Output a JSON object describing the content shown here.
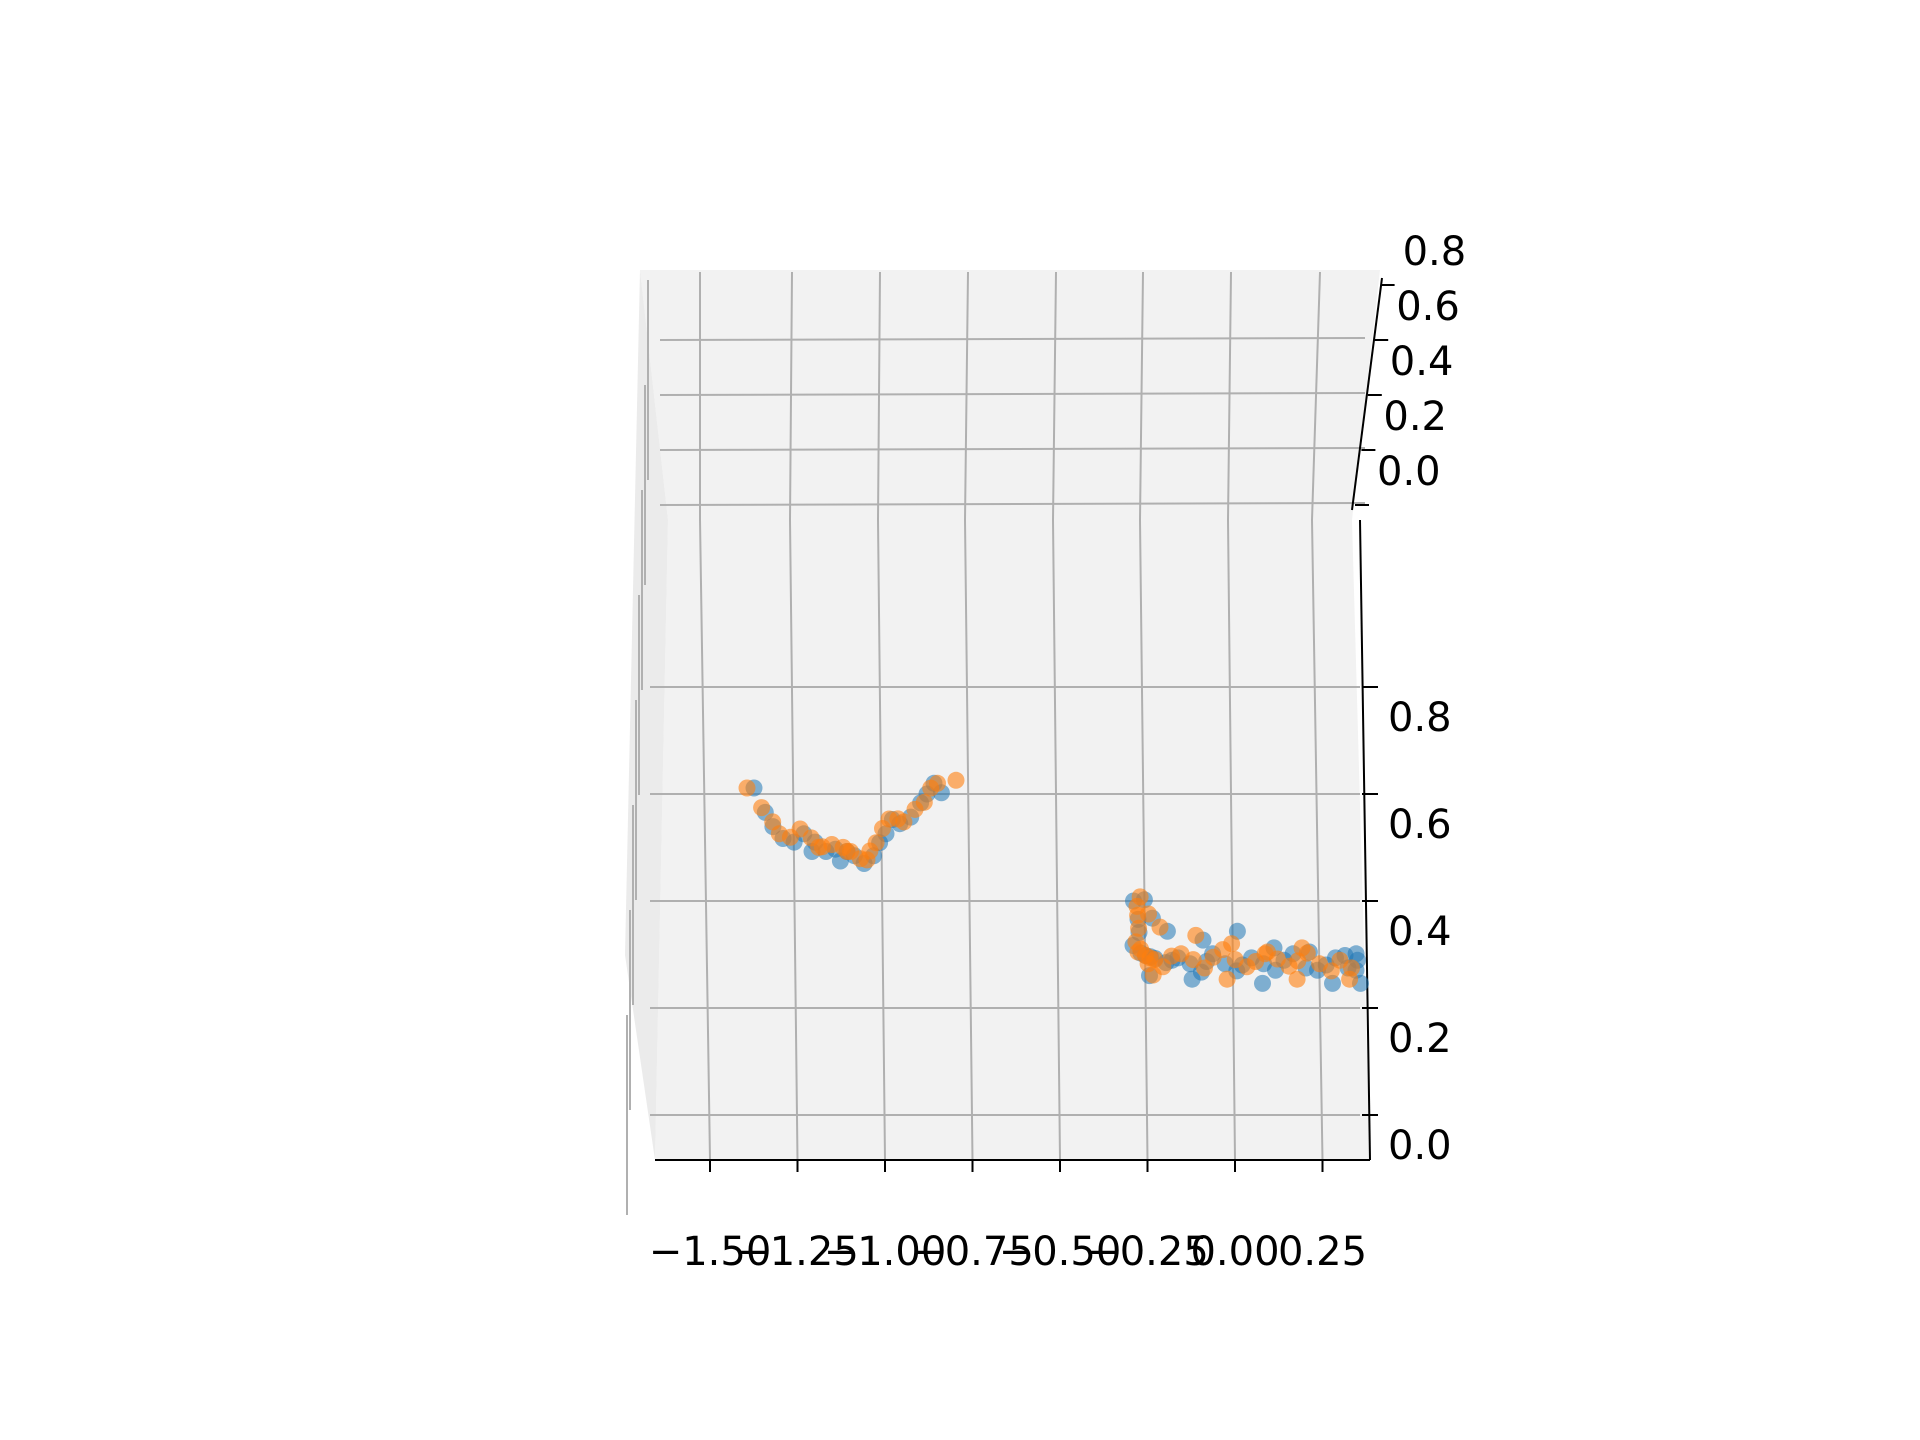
{
  "chart_data": {
    "type": "scatter",
    "projection": "3d",
    "title": "",
    "xlabel": "",
    "ylabel": "",
    "zlabel": "",
    "grid": true,
    "legend": "none",
    "xlim": [
      -1.6,
      0.4
    ],
    "ylim": [
      0.0,
      0.8
    ],
    "zlim": [
      0.0,
      0.8
    ],
    "x_ticks": [
      "−1.50",
      "−1.25",
      "−1.00",
      "−0.75",
      "−0.50",
      "−0.25",
      "0.00",
      "0.25"
    ],
    "y_ticks_upper": [
      "0.0",
      "0.2",
      "0.4",
      "0.6",
      "0.8"
    ],
    "z_ticks_lower": [
      "0.0",
      "0.2",
      "0.4",
      "0.6",
      "0.8"
    ],
    "colors": {
      "series_1": "#1f77b4",
      "series_2": "#ff7f0e",
      "pane": "#f2f2f2",
      "grid": "#b0b0b0",
      "axis": "#000000"
    },
    "series": [
      {
        "color": "#1f77b4",
        "alpha": 0.55,
        "points": [
          [
            -1.38,
            0.1,
            0.6
          ],
          [
            -1.35,
            0.14,
            0.55
          ],
          [
            -1.33,
            0.17,
            0.52
          ],
          [
            -1.3,
            0.15,
            0.5
          ],
          [
            -1.27,
            0.18,
            0.49
          ],
          [
            -1.24,
            0.14,
            0.51
          ],
          [
            -1.21,
            0.18,
            0.49
          ],
          [
            -1.18,
            0.2,
            0.47
          ],
          [
            -1.15,
            0.15,
            0.48
          ],
          [
            -1.12,
            0.2,
            0.47
          ],
          [
            -1.1,
            0.22,
            0.46
          ],
          [
            -1.07,
            0.18,
            0.45
          ],
          [
            -1.04,
            0.13,
            0.47
          ],
          [
            -1.02,
            0.08,
            0.5
          ],
          [
            -1.0,
            0.05,
            0.52
          ],
          [
            -0.98,
            0.02,
            0.55
          ],
          [
            -0.96,
            0.04,
            0.54
          ],
          [
            -0.93,
            0.06,
            0.55
          ],
          [
            -0.9,
            0.03,
            0.58
          ],
          [
            -0.88,
            0.0,
            0.6
          ],
          [
            -0.86,
            0.0,
            0.62
          ],
          [
            -0.84,
            0.02,
            0.6
          ],
          [
            -1.22,
            0.2,
            0.47
          ],
          [
            -1.14,
            0.22,
            0.45
          ],
          [
            -0.3,
            0.15,
            0.3
          ],
          [
            -0.28,
            0.2,
            0.28
          ],
          [
            -0.27,
            0.25,
            0.27
          ],
          [
            -0.26,
            0.32,
            0.26
          ],
          [
            -0.25,
            0.38,
            0.25
          ],
          [
            -0.22,
            0.4,
            0.24
          ],
          [
            -0.2,
            0.35,
            0.25
          ],
          [
            -0.18,
            0.3,
            0.26
          ],
          [
            -0.15,
            0.38,
            0.24
          ],
          [
            -0.12,
            0.42,
            0.22
          ],
          [
            -0.1,
            0.33,
            0.25
          ],
          [
            -0.08,
            0.28,
            0.27
          ],
          [
            -0.05,
            0.38,
            0.24
          ],
          [
            -0.02,
            0.44,
            0.22
          ],
          [
            0.0,
            0.36,
            0.24
          ],
          [
            0.03,
            0.3,
            0.26
          ],
          [
            0.06,
            0.38,
            0.24
          ],
          [
            0.09,
            0.45,
            0.22
          ],
          [
            0.12,
            0.35,
            0.25
          ],
          [
            0.15,
            0.28,
            0.27
          ],
          [
            0.18,
            0.4,
            0.23
          ],
          [
            0.21,
            0.45,
            0.22
          ],
          [
            0.24,
            0.36,
            0.24
          ],
          [
            0.27,
            0.3,
            0.26
          ],
          [
            0.3,
            0.4,
            0.23
          ],
          [
            0.32,
            0.45,
            0.22
          ],
          [
            0.33,
            0.35,
            0.25
          ],
          [
            0.33,
            0.28,
            0.27
          ],
          [
            -0.28,
            0.1,
            0.33
          ],
          [
            -0.28,
            0.05,
            0.36
          ],
          [
            -0.29,
            0.0,
            0.4
          ],
          [
            -0.26,
            0.02,
            0.4
          ],
          [
            -0.24,
            0.07,
            0.36
          ],
          [
            -0.2,
            0.12,
            0.33
          ],
          [
            -0.1,
            0.15,
            0.31
          ],
          [
            0.0,
            0.12,
            0.33
          ],
          [
            0.1,
            0.2,
            0.29
          ],
          [
            0.2,
            0.22,
            0.28
          ],
          [
            0.3,
            0.25,
            0.27
          ],
          [
            -0.15,
            0.48,
            0.2
          ],
          [
            0.05,
            0.5,
            0.19
          ],
          [
            0.25,
            0.5,
            0.19
          ],
          [
            0.33,
            0.5,
            0.19
          ],
          [
            -0.27,
            0.45,
            0.21
          ]
        ]
      },
      {
        "color": "#ff7f0e",
        "alpha": 0.6,
        "points": [
          [
            -1.4,
            0.1,
            0.6
          ],
          [
            -1.36,
            0.13,
            0.56
          ],
          [
            -1.33,
            0.16,
            0.53
          ],
          [
            -1.31,
            0.14,
            0.51
          ],
          [
            -1.28,
            0.17,
            0.5
          ],
          [
            -1.25,
            0.13,
            0.52
          ],
          [
            -1.22,
            0.16,
            0.5
          ],
          [
            -1.19,
            0.19,
            0.48
          ],
          [
            -1.16,
            0.14,
            0.49
          ],
          [
            -1.13,
            0.18,
            0.48
          ],
          [
            -1.11,
            0.2,
            0.47
          ],
          [
            -1.08,
            0.17,
            0.46
          ],
          [
            -1.05,
            0.12,
            0.48
          ],
          [
            -1.03,
            0.08,
            0.5
          ],
          [
            -1.01,
            0.05,
            0.53
          ],
          [
            -0.99,
            0.03,
            0.55
          ],
          [
            -0.95,
            0.07,
            0.54
          ],
          [
            -0.92,
            0.1,
            0.56
          ],
          [
            -0.89,
            0.04,
            0.58
          ],
          [
            -0.87,
            0.01,
            0.61
          ],
          [
            -0.85,
            0.0,
            0.62
          ],
          [
            -0.8,
            0.05,
            0.62
          ],
          [
            -1.2,
            0.18,
            0.48
          ],
          [
            -1.12,
            0.2,
            0.47
          ],
          [
            -1.06,
            0.15,
            0.46
          ],
          [
            -0.97,
            0.12,
            0.54
          ],
          [
            -0.29,
            0.12,
            0.31
          ],
          [
            -0.28,
            0.18,
            0.29
          ],
          [
            -0.27,
            0.25,
            0.27
          ],
          [
            -0.26,
            0.3,
            0.26
          ],
          [
            -0.25,
            0.36,
            0.25
          ],
          [
            -0.23,
            0.42,
            0.23
          ],
          [
            -0.2,
            0.33,
            0.26
          ],
          [
            -0.17,
            0.28,
            0.27
          ],
          [
            -0.14,
            0.36,
            0.25
          ],
          [
            -0.11,
            0.4,
            0.23
          ],
          [
            -0.08,
            0.31,
            0.26
          ],
          [
            -0.05,
            0.26,
            0.28
          ],
          [
            -0.02,
            0.36,
            0.25
          ],
          [
            0.01,
            0.42,
            0.23
          ],
          [
            0.04,
            0.33,
            0.25
          ],
          [
            0.07,
            0.28,
            0.27
          ],
          [
            0.1,
            0.37,
            0.25
          ],
          [
            0.13,
            0.43,
            0.23
          ],
          [
            0.16,
            0.34,
            0.25
          ],
          [
            0.19,
            0.29,
            0.27
          ],
          [
            0.22,
            0.38,
            0.24
          ],
          [
            0.25,
            0.44,
            0.22
          ],
          [
            0.28,
            0.35,
            0.25
          ],
          [
            0.31,
            0.4,
            0.23
          ],
          [
            -0.28,
            0.08,
            0.34
          ],
          [
            -0.28,
            0.03,
            0.37
          ],
          [
            -0.28,
            0.0,
            0.39
          ],
          [
            -0.27,
            -0.02,
            0.41
          ],
          [
            -0.25,
            0.05,
            0.37
          ],
          [
            -0.22,
            0.1,
            0.34
          ],
          [
            -0.12,
            0.14,
            0.32
          ],
          [
            -0.02,
            0.18,
            0.3
          ],
          [
            0.08,
            0.22,
            0.28
          ],
          [
            0.18,
            0.2,
            0.29
          ],
          [
            -0.26,
            0.46,
            0.21
          ],
          [
            -0.05,
            0.48,
            0.2
          ],
          [
            0.15,
            0.48,
            0.2
          ],
          [
            0.3,
            0.48,
            0.2
          ],
          [
            -0.29,
            0.22,
            0.28
          ],
          [
            -0.27,
            0.38,
            0.24
          ]
        ]
      }
    ]
  }
}
